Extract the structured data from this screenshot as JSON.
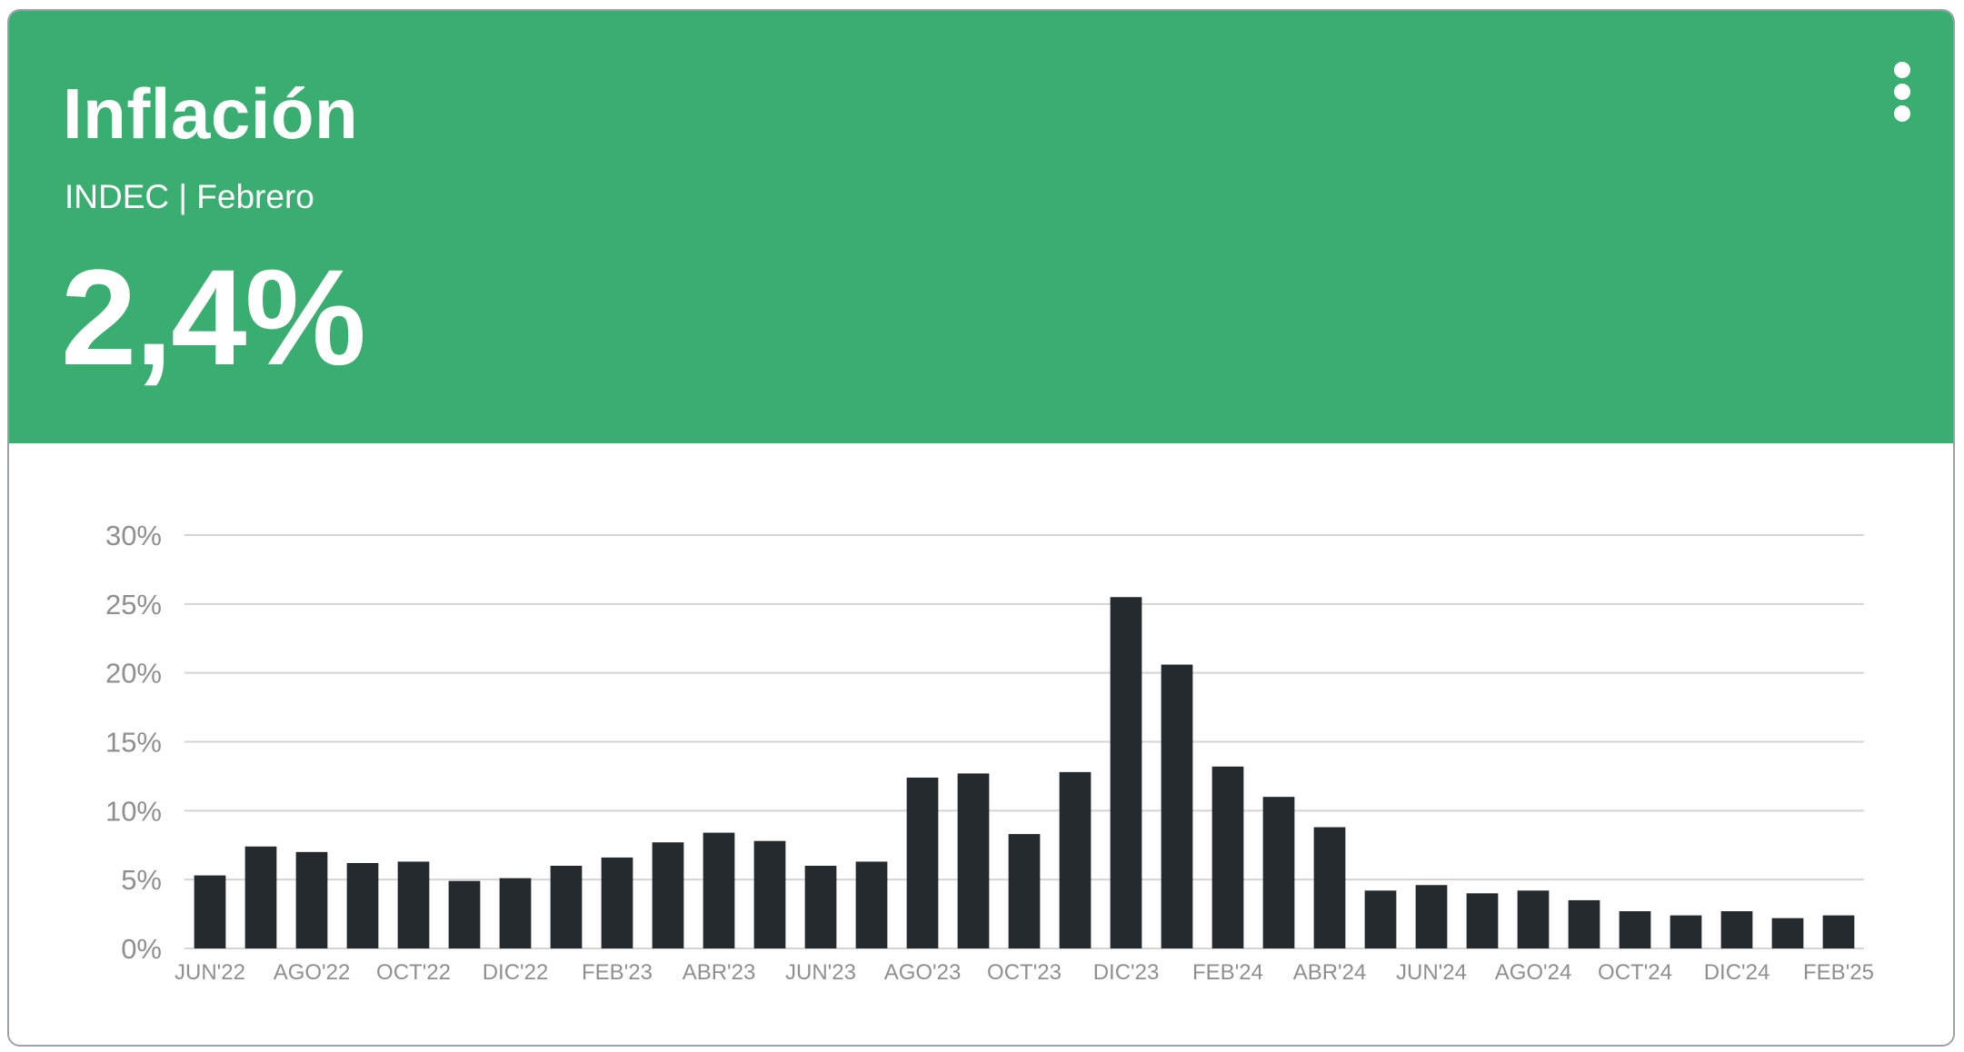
{
  "card": {
    "title": "Inflación",
    "subtitle": "INDEC | Febrero",
    "value": "2,4%",
    "menu_icon": "more-vertical-icon",
    "header_color": "#3aae70",
    "bar_color": "#252a2e"
  },
  "chart_data": {
    "type": "bar",
    "categories": [
      "JUN'22",
      "JUL'22",
      "AGO'22",
      "SEP'22",
      "OCT'22",
      "NOV'22",
      "DIC'22",
      "ENE'23",
      "FEB'23",
      "MAR'23",
      "ABR'23",
      "MAY'23",
      "JUN'23",
      "JUL'23",
      "AGO'23",
      "SEP'23",
      "OCT'23",
      "NOV'23",
      "DIC'23",
      "ENE'24",
      "FEB'24",
      "MAR'24",
      "ABR'24",
      "MAY'24",
      "JUN'24",
      "JUL'24",
      "AGO'24",
      "SEP'24",
      "OCT'24",
      "NOV'24",
      "DIC'24",
      "ENE'25",
      "FEB'25"
    ],
    "x_tick_labels": [
      "JUN'22",
      "AGO'22",
      "OCT'22",
      "DIC'22",
      "FEB'23",
      "ABR'23",
      "JUN'23",
      "AGO'23",
      "OCT'23",
      "DIC'23",
      "FEB'24",
      "ABR'24",
      "JUN'24",
      "AGO'24",
      "OCT'24",
      "DIC'24",
      "FEB'25"
    ],
    "values": [
      5.3,
      7.4,
      7.0,
      6.2,
      6.3,
      4.9,
      5.1,
      6.0,
      6.6,
      7.7,
      8.4,
      7.8,
      6.0,
      6.3,
      12.4,
      12.7,
      8.3,
      12.8,
      25.5,
      20.6,
      13.2,
      11.0,
      8.8,
      4.2,
      4.6,
      4.0,
      4.2,
      3.5,
      2.7,
      2.4,
      2.7,
      2.2,
      2.4
    ],
    "y_ticks": [
      "0%",
      "5%",
      "10%",
      "15%",
      "20%",
      "25%",
      "30%"
    ],
    "ylim": [
      0,
      30
    ],
    "grid": true
  }
}
